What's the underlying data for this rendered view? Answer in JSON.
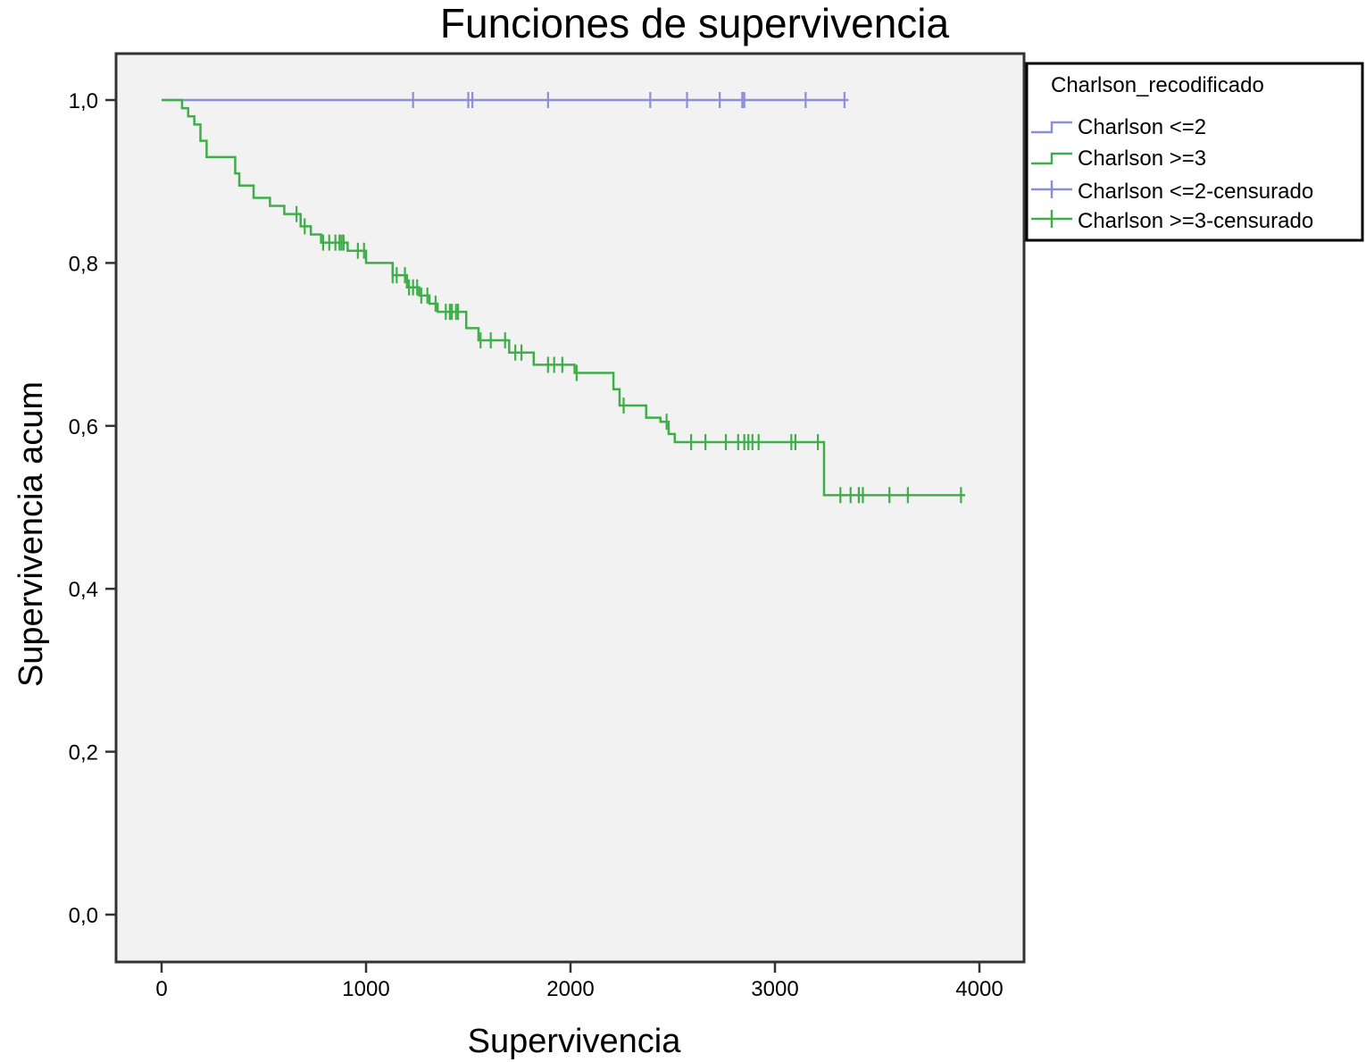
{
  "chart_data": {
    "type": "line",
    "step": true,
    "title": "Funciones de supervivencia",
    "xlabel": "Supervivencia",
    "ylabel": "Supervivencia acum",
    "xlim": [
      0,
      4000
    ],
    "ylim": [
      0,
      1.0
    ],
    "xticks": [
      0,
      1000,
      2000,
      3000,
      4000
    ],
    "xtick_labels": [
      "0",
      "1000",
      "2000",
      "3000",
      "4000"
    ],
    "yticks": [
      0,
      0.2,
      0.4,
      0.6,
      0.8,
      1.0
    ],
    "ytick_labels": [
      "0,0",
      "0,2",
      "0,4",
      "0,6",
      "0,8",
      "1,0"
    ],
    "grid": false,
    "legend_position": "right",
    "legend": {
      "title": "Charlson_recodificado",
      "entries": [
        "Charlson <=2",
        "Charlson >=3",
        "Charlson <=2-censurado",
        "Charlson >=3-censurado"
      ]
    },
    "colors": {
      "Charlson <=2": "#8a8fd8",
      "Charlson >=3": "#3fae4a",
      "plot_background": "#f2f2f2"
    },
    "series": [
      {
        "name": "Charlson <=2",
        "x": [
          0,
          3360
        ],
        "y": [
          1.0,
          1.0
        ],
        "censored": [
          1230,
          1500,
          1520,
          1890,
          2390,
          2570,
          2730,
          2840,
          2850,
          3150,
          3340
        ]
      },
      {
        "name": "Charlson >=3",
        "x": [
          0,
          100,
          130,
          160,
          190,
          220,
          360,
          380,
          450,
          530,
          600,
          680,
          730,
          780,
          910,
          1000,
          1130,
          1200,
          1260,
          1310,
          1350,
          1490,
          1550,
          1700,
          1820,
          2020,
          2210,
          2240,
          2370,
          2440,
          2480,
          2510,
          3220,
          3240,
          3930
        ],
        "y": [
          1.0,
          0.99,
          0.98,
          0.97,
          0.95,
          0.93,
          0.91,
          0.895,
          0.88,
          0.87,
          0.86,
          0.845,
          0.835,
          0.825,
          0.815,
          0.8,
          0.785,
          0.77,
          0.76,
          0.75,
          0.74,
          0.72,
          0.705,
          0.69,
          0.675,
          0.665,
          0.645,
          0.625,
          0.61,
          0.605,
          0.59,
          0.58,
          0.58,
          0.515,
          0.515
        ],
        "censored": [
          660,
          700,
          790,
          820,
          850,
          870,
          880,
          890,
          960,
          990,
          1130,
          1150,
          1190,
          1210,
          1230,
          1250,
          1270,
          1300,
          1340,
          1390,
          1410,
          1420,
          1440,
          1450,
          1560,
          1610,
          1680,
          1730,
          1760,
          1890,
          1920,
          1960,
          2030,
          2260,
          2470,
          2590,
          2660,
          2760,
          2820,
          2850,
          2870,
          2890,
          2920,
          3080,
          3100,
          3210,
          3320,
          3370,
          3410,
          3430,
          3560,
          3650,
          3910
        ]
      }
    ]
  }
}
